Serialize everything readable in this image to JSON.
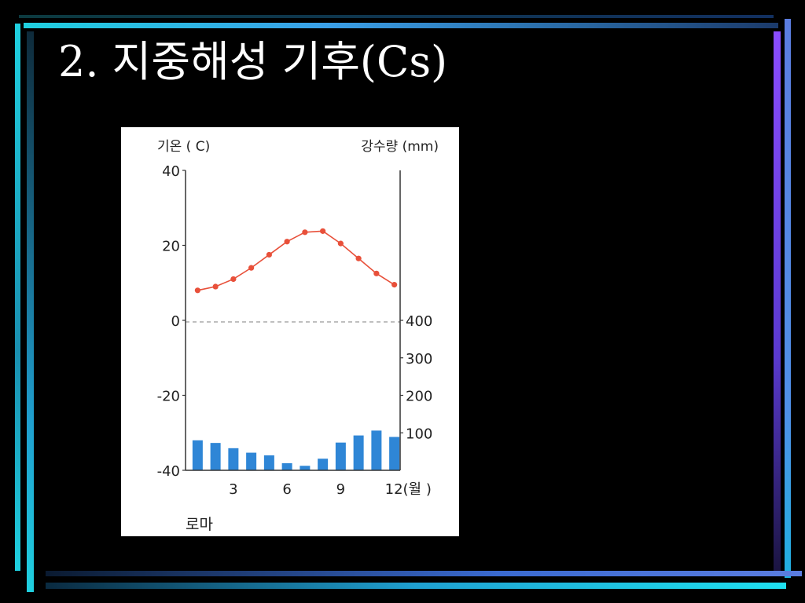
{
  "slide": {
    "title": "2. 지중해성 기후(Cs)"
  },
  "colors": {
    "background": "#000000",
    "accent_cyan": "#1fd0e0",
    "accent_blue": "#5b7de0",
    "accent_violet": "#8a4dff",
    "temperature_line": "#e8503a",
    "precipitation_bar": "#2f86d6"
  },
  "chart_data": {
    "type": "bar+line",
    "title": "",
    "location_label": "로마",
    "left_axis": {
      "label": "기온 ( C)",
      "ticks": [
        "40",
        "20",
        "0",
        "-20",
        "-40"
      ],
      "range": [
        -40,
        40
      ]
    },
    "right_axis": {
      "label": "강수량 (mm)",
      "ticks": [
        "400",
        "300",
        "200",
        "100"
      ],
      "range": [
        0,
        400
      ]
    },
    "x_axis": {
      "tick_labels": [
        "3",
        "6",
        "9",
        "12(월 )"
      ],
      "tick_months": [
        3,
        6,
        9,
        12
      ]
    },
    "months": [
      1,
      2,
      3,
      4,
      5,
      6,
      7,
      8,
      9,
      10,
      11,
      12
    ],
    "temperature": [
      8,
      9,
      11,
      14,
      17.5,
      21,
      23.5,
      23.8,
      20.5,
      16.5,
      12.5,
      9.5
    ],
    "precipitation": [
      80,
      73,
      59,
      47,
      40,
      19,
      12,
      31,
      74,
      93,
      106,
      89
    ],
    "zero_line": "dashed"
  }
}
